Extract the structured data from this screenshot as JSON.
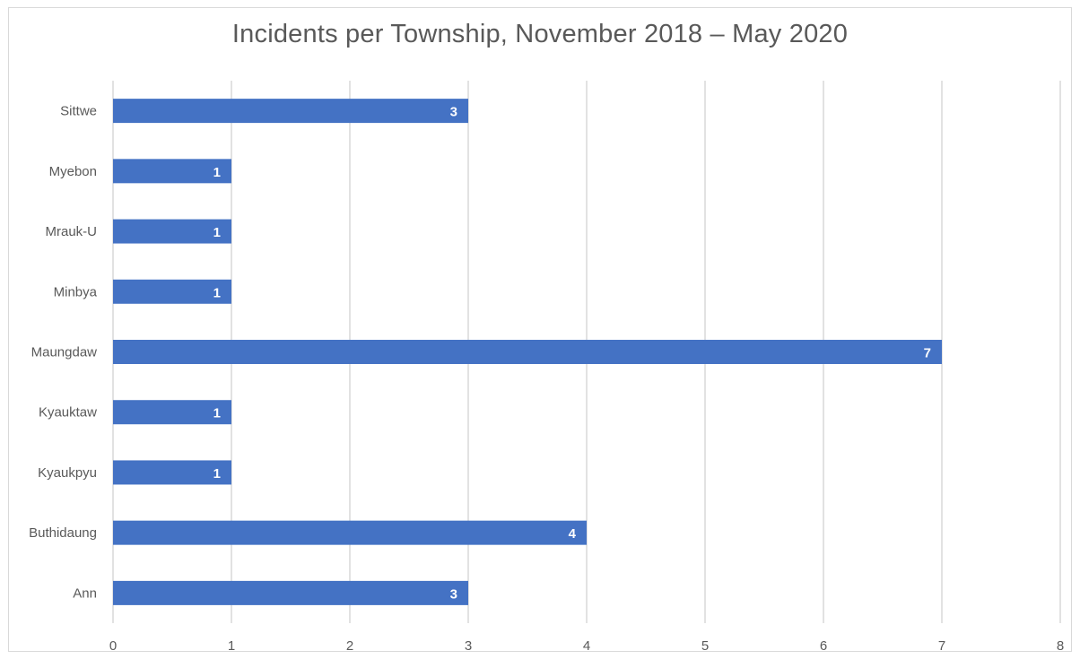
{
  "chart_data": {
    "type": "bar",
    "orientation": "horizontal",
    "title": "Incidents per Township, November 2018 – May 2020",
    "categories": [
      "Sittwe",
      "Myebon",
      "Mrauk-U",
      "Minbya",
      "Maungdaw",
      "Kyauktaw",
      "Kyaukpyu",
      "Buthidaung",
      "Ann"
    ],
    "values": [
      3,
      1,
      1,
      1,
      7,
      1,
      1,
      4,
      3
    ],
    "xlim": [
      0,
      8
    ],
    "xticks": [
      0,
      1,
      2,
      3,
      4,
      5,
      6,
      7,
      8
    ],
    "xlabel": "",
    "ylabel": "",
    "grid": true,
    "data_labels": true,
    "legend": "none",
    "bar_color": "#4472c4"
  }
}
